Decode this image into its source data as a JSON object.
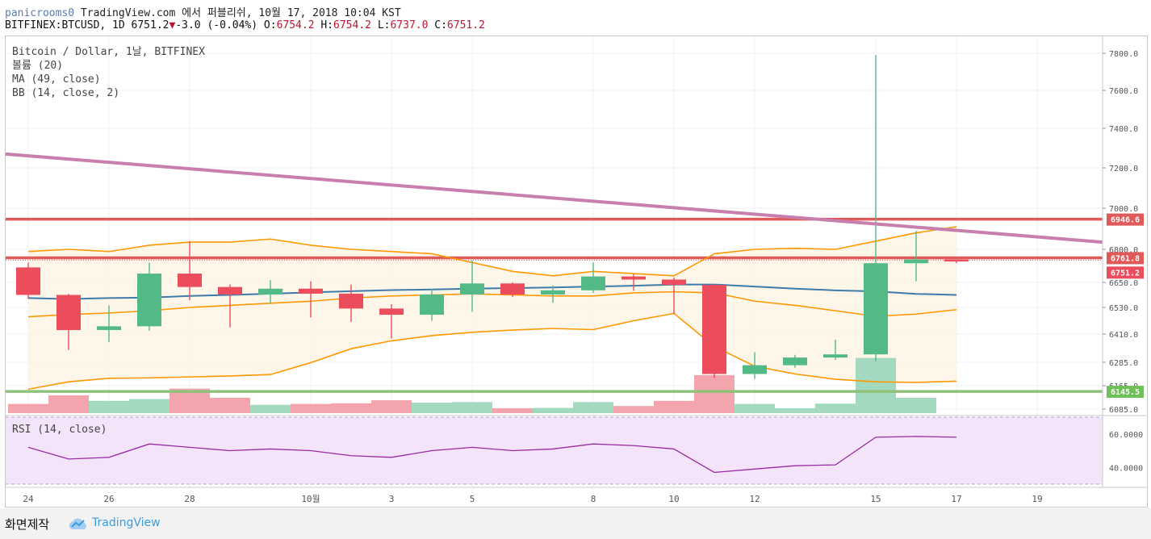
{
  "header": {
    "user": "panicrooms0",
    "publish_text": "TradingView.com 에서 퍼블리쉬, 10월 17, 2018 10:04 KST",
    "symbol": "BITFINEX:BTCUSD, 1D 6751.2",
    "change": "-3.0 (-0.04%)",
    "ohlc": [
      {
        "k": "O:",
        "v": "6754.2"
      },
      {
        "k": "H:",
        "v": "6754.2"
      },
      {
        "k": "L:",
        "v": "6737.0"
      },
      {
        "k": "C:",
        "v": "6751.2"
      }
    ]
  },
  "legend": [
    "Bitcoin / Dollar, 1날, BITFINEX",
    "볼륨 (20)",
    "MA (49, close)",
    "BB (14, close, 2)"
  ],
  "rsi_legend": "RSI (14, close)",
  "footer": {
    "made": "화면제작",
    "brand": "TradingView"
  },
  "colors": {
    "up": "#53b987",
    "down": "#eb4d5c",
    "ma": "#3d7bab",
    "bb": "#ff9800",
    "trend": "#c87fae",
    "resistance": "#e05a5a",
    "support": "#8fc17a",
    "rsi": "#9a2aa5",
    "rsi_bg": "#f3e4f9"
  },
  "chart_data": {
    "type": "candlestick",
    "symbol": "BITFINEX:BTCUSD",
    "interval": "1D",
    "x_ticks": [
      "24",
      "26",
      "28",
      "10월",
      "3",
      "5",
      "8",
      "10",
      "12",
      "15",
      "17",
      "19"
    ],
    "price_ticks": [
      7800.0,
      7600.0,
      7400.0,
      7200.0,
      7000.0,
      6800.0,
      6650.0,
      6530.0,
      6410.0,
      6285.0,
      6165.0,
      6085.0
    ],
    "price_labels": [
      {
        "text": "6946.6",
        "value": 6946.6,
        "color": "#e05a5a"
      },
      {
        "text": "6761.8",
        "value": 6761.8,
        "color": "#e05a5a"
      },
      {
        "text": "6751.2",
        "value": 6751.2,
        "color": "#eb4d5c"
      },
      {
        "text": "6145.5",
        "value": 6145.5,
        "color": "#6fbf5a"
      }
    ],
    "candles": [
      {
        "o": 6718,
        "h": 6740,
        "l": 6570,
        "c": 6590
      },
      {
        "o": 6590,
        "h": 6595,
        "l": 6340,
        "c": 6428
      },
      {
        "o": 6428,
        "h": 6540,
        "l": 6375,
        "c": 6445
      },
      {
        "o": 6445,
        "h": 6740,
        "l": 6425,
        "c": 6690
      },
      {
        "o": 6690,
        "h": 6840,
        "l": 6565,
        "c": 6628
      },
      {
        "o": 6628,
        "h": 6640,
        "l": 6440,
        "c": 6592
      },
      {
        "o": 6592,
        "h": 6660,
        "l": 6548,
        "c": 6620
      },
      {
        "o": 6620,
        "h": 6655,
        "l": 6485,
        "c": 6596
      },
      {
        "o": 6596,
        "h": 6640,
        "l": 6465,
        "c": 6525
      },
      {
        "o": 6525,
        "h": 6545,
        "l": 6390,
        "c": 6497
      },
      {
        "o": 6497,
        "h": 6620,
        "l": 6470,
        "c": 6592
      },
      {
        "o": 6592,
        "h": 6750,
        "l": 6510,
        "c": 6645
      },
      {
        "o": 6645,
        "h": 6650,
        "l": 6580,
        "c": 6592
      },
      {
        "o": 6592,
        "h": 6636,
        "l": 6552,
        "c": 6612
      },
      {
        "o": 6612,
        "h": 6740,
        "l": 6600,
        "c": 6677
      },
      {
        "o": 6677,
        "h": 6688,
        "l": 6610,
        "c": 6663
      },
      {
        "o": 6663,
        "h": 6672,
        "l": 6500,
        "c": 6638
      },
      {
        "o": 6638,
        "h": 6642,
        "l": 6205,
        "c": 6225
      },
      {
        "o": 6225,
        "h": 6330,
        "l": 6200,
        "c": 6270
      },
      {
        "o": 6270,
        "h": 6318,
        "l": 6257,
        "c": 6306
      },
      {
        "o": 6306,
        "h": 6385,
        "l": 6296,
        "c": 6320
      },
      {
        "o": 6320,
        "h": 7790,
        "l": 6290,
        "c": 6737
      },
      {
        "o": 6737,
        "h": 6890,
        "l": 6655,
        "c": 6754
      },
      {
        "o": 6754,
        "h": 6754,
        "l": 6737,
        "c": 6751
      }
    ],
    "ma_49": [
      6575,
      6570,
      6575,
      6577,
      6585,
      6590,
      6596,
      6602,
      6608,
      6613,
      6616,
      6620,
      6623,
      6626,
      6630,
      6634,
      6640,
      6640,
      6630,
      6620,
      6612,
      6607,
      6595,
      6590
    ],
    "bb_upper": [
      6790,
      6800,
      6790,
      6820,
      6835,
      6835,
      6850,
      6820,
      6800,
      6790,
      6780,
      6740,
      6700,
      6680,
      6700,
      6690,
      6680,
      6780,
      6800,
      6805,
      6800,
      6840,
      6880,
      6910
    ],
    "bb_middle": [
      6488,
      6498,
      6505,
      6515,
      6530,
      6540,
      6550,
      6560,
      6575,
      6585,
      6590,
      6595,
      6590,
      6585,
      6585,
      6600,
      6605,
      6600,
      6560,
      6540,
      6515,
      6490,
      6500,
      6520
    ],
    "bb_lower": [
      6153,
      6185,
      6203,
      6205,
      6210,
      6215,
      6222,
      6283,
      6345,
      6380,
      6403,
      6418,
      6428,
      6435,
      6430,
      6470,
      6503,
      6355,
      6265,
      6225,
      6198,
      6185,
      6182,
      6188
    ],
    "trendline": {
      "start": 7270,
      "end": 6835
    },
    "volume": [
      0.3,
      0.58,
      0.4,
      0.46,
      0.8,
      0.5,
      0.27,
      0.3,
      0.32,
      0.42,
      0.34,
      0.36,
      0.16,
      0.17,
      0.36,
      0.23,
      0.4,
      1.24,
      0.3,
      0.16,
      0.31,
      1.8,
      0.5,
      0
    ],
    "rsi": [
      52,
      45,
      46,
      54,
      52,
      50,
      51,
      50,
      47,
      46,
      50,
      52,
      50,
      51,
      54,
      53,
      51,
      37,
      39,
      41,
      41.5,
      58,
      58.5,
      58
    ],
    "rsi_ticks": [
      60.0,
      40.0
    ],
    "rsi_range": [
      30,
      70
    ]
  }
}
